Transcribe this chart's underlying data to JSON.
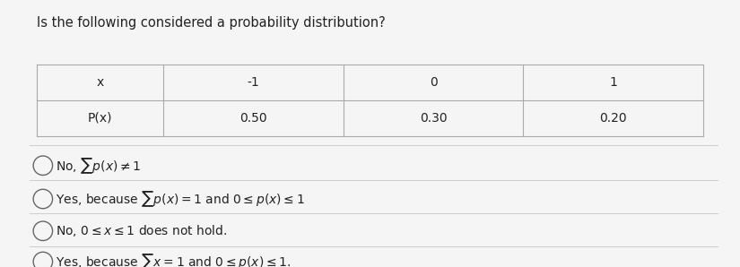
{
  "title": "Is the following considered a probability distribution?",
  "table_headers": [
    "x",
    "-1",
    "0",
    "1"
  ],
  "table_row": [
    "P(x)",
    "0.50",
    "0.30",
    "0.20"
  ],
  "options": [
    "No, $\\sum p(x) \\neq 1$",
    "Yes, because $\\sum p(x) = 1$ and $0 \\leq p(x) \\leq 1$",
    "No, $0 \\leq x \\leq 1$ does not hold.",
    "Yes, because $\\sum x = 1$ and $0 \\leq p(x) \\leq 1$."
  ],
  "bg_color": "#f5f5f5",
  "text_color": "#222222",
  "title_fontsize": 10.5,
  "option_fontsize": 10.0,
  "table_fontsize": 10.0
}
